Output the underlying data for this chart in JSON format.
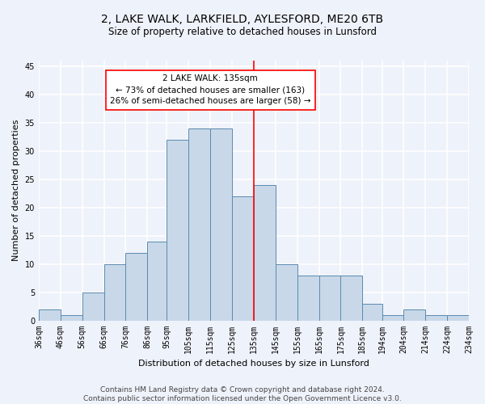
{
  "title1": "2, LAKE WALK, LARKFIELD, AYLESFORD, ME20 6TB",
  "title2": "Size of property relative to detached houses in Lunsford",
  "xlabel": "Distribution of detached houses by size in Lunsford",
  "ylabel": "Number of detached properties",
  "bin_labels": [
    "36sqm",
    "46sqm",
    "56sqm",
    "66sqm",
    "76sqm",
    "86sqm",
    "95sqm",
    "105sqm",
    "115sqm",
    "125sqm",
    "135sqm",
    "145sqm",
    "155sqm",
    "165sqm",
    "175sqm",
    "185sqm",
    "194sqm",
    "204sqm",
    "214sqm",
    "224sqm",
    "234sqm"
  ],
  "bar_values": [
    2,
    1,
    5,
    10,
    12,
    14,
    32,
    34,
    34,
    22,
    24,
    10,
    8,
    8,
    8,
    3,
    1,
    2,
    1,
    1
  ],
  "bin_edges": [
    36,
    46,
    56,
    66,
    76,
    86,
    95,
    105,
    115,
    125,
    135,
    145,
    155,
    165,
    175,
    185,
    194,
    204,
    214,
    224,
    234
  ],
  "bar_color": "#c8d8e8",
  "bar_edge_color": "#5a8ab0",
  "property_line_x": 135,
  "property_line_color": "red",
  "annotation_text": "2 LAKE WALK: 135sqm\n← 73% of detached houses are smaller (163)\n26% of semi-detached houses are larger (58) →",
  "annotation_box_color": "white",
  "annotation_box_edge_color": "red",
  "ylim": [
    0,
    46
  ],
  "yticks": [
    0,
    5,
    10,
    15,
    20,
    25,
    30,
    35,
    40,
    45
  ],
  "footer_text": "Contains HM Land Registry data © Crown copyright and database right 2024.\nContains public sector information licensed under the Open Government Licence v3.0.",
  "background_color": "#eef2fa",
  "grid_color": "#ffffff",
  "title1_fontsize": 10,
  "title2_fontsize": 8.5,
  "xlabel_fontsize": 8,
  "ylabel_fontsize": 8,
  "tick_fontsize": 7,
  "footer_fontsize": 6.5,
  "annot_fontsize": 7.5
}
